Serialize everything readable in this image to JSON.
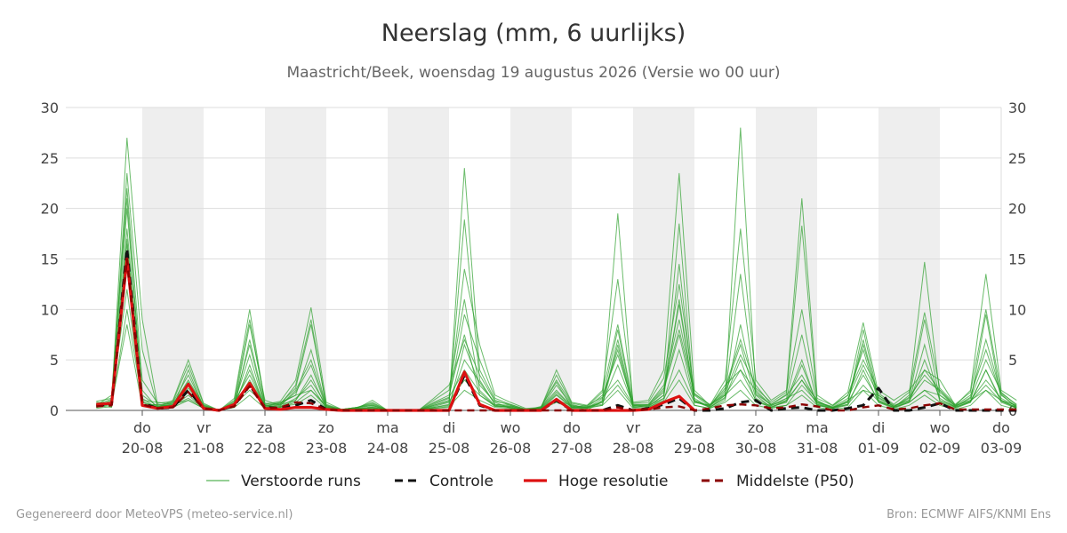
{
  "header": {
    "title": "Neerslag (mm, 6 uurlijks)",
    "subtitle": "Maastricht/Beek, woensdag 19 augustus 2026 (Versie wo 00 uur)"
  },
  "footer": {
    "left": "Gegenereerd door MeteoVPS (meteo-service.nl)",
    "right": "Bron: ECMWF AIFS/KNMI Ens"
  },
  "colors": {
    "ensemble": "#2ca02c",
    "control": "#111111",
    "high_res": "#dd1111",
    "median": "#8b0000",
    "weekend_shade": "#eeeeee",
    "grid": "#dddddd"
  },
  "chart_data": {
    "type": "line",
    "title": "Neerslag (mm, 6 uurlijks)",
    "subtitle": "Maastricht/Beek, woensdag 19 augustus 2026 (Versie wo 00 uur)",
    "ylabel": "",
    "xlabel": "",
    "ylim": [
      0,
      30
    ],
    "yticks": [
      0,
      5,
      10,
      15,
      20,
      25,
      30
    ],
    "grid": true,
    "legend_position": "bottom",
    "x_start": "2026-08-19 06:00",
    "x_step_hours": 6,
    "x_ticks": [
      {
        "day": "do",
        "date": "20-08"
      },
      {
        "day": "vr",
        "date": "21-08"
      },
      {
        "day": "za",
        "date": "22-08"
      },
      {
        "day": "zo",
        "date": "23-08"
      },
      {
        "day": "ma",
        "date": "24-08"
      },
      {
        "day": "di",
        "date": "25-08"
      },
      {
        "day": "wo",
        "date": "26-08"
      },
      {
        "day": "do",
        "date": "27-08"
      },
      {
        "day": "vr",
        "date": "28-08"
      },
      {
        "day": "za",
        "date": "29-08"
      },
      {
        "day": "zo",
        "date": "30-08"
      },
      {
        "day": "ma",
        "date": "31-08"
      },
      {
        "day": "di",
        "date": "01-09"
      },
      {
        "day": "wo",
        "date": "02-09"
      },
      {
        "day": "do",
        "date": "03-09"
      }
    ],
    "series": [
      {
        "name": "Controle",
        "style": "dashed",
        "color": "#111111",
        "values": [
          0.5,
          0.6,
          16.0,
          0.7,
          0.2,
          0.3,
          2.0,
          0.2,
          0.0,
          0.5,
          2.5,
          0.3,
          0.2,
          0.5,
          1.0,
          0.1,
          0.0,
          0.0,
          0.0,
          0.0,
          0.0,
          0.0,
          0.0,
          0.0,
          3.5,
          0.5,
          0.0,
          0.0,
          0.0,
          0.0,
          1.0,
          0.0,
          0.0,
          0.0,
          0.5,
          0.0,
          0.2,
          0.6,
          1.2,
          0.0,
          0.0,
          0.2,
          0.8,
          1.0,
          0.0,
          0.2,
          0.3,
          0.0,
          0.0,
          0.2,
          0.5,
          2.2,
          0.0,
          0.0,
          0.3,
          0.7,
          0.0,
          0.0,
          0.0,
          0.0,
          0.0
        ]
      },
      {
        "name": "Hoge resolutie",
        "style": "solid",
        "color": "#dd1111",
        "values": [
          0.6,
          0.7,
          15.0,
          0.5,
          0.2,
          0.4,
          2.6,
          0.2,
          0.0,
          0.6,
          2.7,
          0.2,
          0.1,
          0.3,
          0.3,
          0.1,
          0.0,
          0.0,
          0.0,
          0.0,
          0.0,
          0.0,
          0.0,
          0.0,
          3.8,
          0.6,
          0.0,
          0.0,
          0.0,
          0.0,
          1.1,
          0.0,
          0.0,
          0.0,
          0.0,
          0.0,
          0.1,
          0.8,
          1.4,
          0.0
        ]
      },
      {
        "name": "Middelste (P50)",
        "style": "dashed",
        "color": "#8b0000",
        "values": [
          0.4,
          0.5,
          15.0,
          0.6,
          0.2,
          0.3,
          1.8,
          0.2,
          0.0,
          0.4,
          2.4,
          0.2,
          0.3,
          0.8,
          0.7,
          0.1,
          0.0,
          0.0,
          0.0,
          0.0,
          0.0,
          0.0,
          0.0,
          0.0,
          0.0,
          0.0,
          0.0,
          0.0,
          0.0,
          0.0,
          0.0,
          0.0,
          0.0,
          0.0,
          0.3,
          0.0,
          0.1,
          0.3,
          0.4,
          0.0,
          0.2,
          0.5,
          0.6,
          0.5,
          0.2,
          0.3,
          0.6,
          0.4,
          0.0,
          0.0,
          0.3,
          0.5,
          0.1,
          0.2,
          0.5,
          0.7,
          0.1,
          0.1,
          0.1,
          0.1,
          0.1
        ]
      }
    ],
    "ensemble": {
      "name": "Verstoorde runs",
      "color": "#2ca02c",
      "members": [
        [
          0.3,
          0.9,
          27.0,
          9.0,
          0.5,
          0.8,
          3.5,
          0.4,
          0.0,
          0.8,
          6.5,
          0.4,
          0.7,
          1.5,
          2.0,
          0.5,
          0.0,
          0.2,
          0.5,
          0.0,
          0.0,
          0.0,
          0.3,
          0.5,
          24.0,
          4.0,
          1.0,
          0.5,
          0.0,
          0.2,
          2.5,
          0.5,
          0.0,
          1.0,
          8.0,
          0.5,
          0.5,
          2.0,
          7.5,
          1.0,
          0.3,
          1.5,
          4.0,
          2.0,
          0.5,
          1.0,
          3.0,
          1.0,
          0.2,
          1.0,
          2.0,
          1.5,
          0.5,
          1.0,
          3.0,
          2.0,
          0.5,
          1.0,
          2.0,
          1.0,
          0.5
        ],
        [
          0.8,
          0.7,
          23.5,
          6.0,
          0.3,
          1.0,
          5.0,
          0.7,
          0.0,
          1.2,
          10.0,
          0.6,
          0.9,
          3.0,
          10.2,
          0.8,
          0.1,
          0.3,
          0.8,
          0.0,
          0.0,
          0.0,
          0.5,
          1.0,
          14.0,
          6.5,
          1.5,
          0.8,
          0.2,
          0.3,
          4.0,
          0.8,
          0.5,
          2.0,
          13.0,
          0.8,
          1.0,
          4.0,
          23.5,
          2.0,
          0.5,
          3.0,
          18.0,
          3.0,
          1.0,
          2.0,
          21.0,
          1.5,
          0.5,
          1.5,
          5.0,
          2.0,
          1.0,
          2.0,
          4.0,
          3.0,
          0.5,
          2.0,
          13.5,
          2.0,
          1.0
        ],
        [
          0.5,
          1.5,
          21.0,
          1.0,
          0.8,
          0.6,
          1.0,
          0.2,
          0.0,
          0.5,
          8.5,
          1.0,
          0.5,
          2.0,
          5.0,
          0.4,
          0.0,
          0.1,
          0.3,
          0.0,
          0.0,
          0.0,
          1.0,
          2.0,
          11.0,
          2.0,
          0.5,
          0.3,
          0.0,
          0.1,
          1.5,
          0.3,
          0.3,
          0.5,
          6.5,
          0.3,
          0.4,
          1.5,
          18.5,
          0.5,
          0.2,
          1.0,
          8.5,
          1.5,
          0.3,
          0.5,
          2.5,
          0.8,
          0.3,
          0.8,
          3.5,
          1.0,
          0.3,
          0.8,
          2.0,
          1.5,
          0.3,
          0.8,
          9.5,
          1.0,
          0.3
        ],
        [
          0.2,
          0.4,
          20.0,
          2.0,
          0.2,
          0.3,
          4.0,
          0.3,
          0.0,
          0.6,
          4.0,
          0.3,
          0.6,
          2.5,
          9.0,
          0.3,
          0.0,
          0.2,
          1.0,
          0.0,
          0.0,
          0.0,
          0.2,
          0.3,
          6.5,
          2.5,
          0.8,
          0.2,
          0.0,
          0.2,
          1.8,
          0.4,
          0.2,
          0.8,
          4.5,
          0.5,
          0.3,
          1.2,
          14.5,
          0.8,
          0.5,
          2.0,
          6.5,
          1.2,
          0.4,
          0.8,
          4.5,
          0.6,
          0.2,
          0.6,
          8.0,
          1.2,
          0.4,
          1.2,
          9.0,
          1.0,
          0.4,
          1.0,
          3.0,
          1.2,
          0.4
        ],
        [
          0.6,
          0.5,
          18.0,
          1.5,
          0.4,
          0.5,
          3.0,
          0.5,
          0.0,
          0.3,
          7.0,
          0.5,
          0.3,
          1.0,
          3.5,
          0.2,
          0.0,
          0.1,
          0.4,
          0.0,
          0.0,
          0.0,
          0.8,
          1.5,
          7.5,
          1.5,
          0.4,
          0.3,
          0.0,
          0.4,
          2.8,
          0.3,
          0.4,
          0.6,
          7.0,
          0.4,
          0.6,
          2.5,
          9.0,
          1.5,
          0.4,
          1.8,
          5.5,
          2.5,
          0.6,
          1.5,
          3.5,
          0.8,
          0.4,
          1.5,
          6.0,
          0.8,
          0.3,
          1.5,
          14.7,
          1.5,
          0.5,
          1.5,
          6.0,
          1.5,
          0.4
        ],
        [
          0.4,
          1.0,
          17.0,
          0.8,
          0.3,
          0.6,
          2.2,
          0.3,
          0.0,
          0.7,
          5.5,
          0.3,
          0.5,
          1.8,
          4.5,
          0.3,
          0.1,
          0.2,
          0.2,
          0.0,
          0.0,
          0.0,
          0.4,
          0.8,
          18.9,
          3.0,
          0.6,
          0.4,
          0.1,
          0.2,
          1.2,
          0.2,
          0.3,
          1.5,
          5.5,
          0.6,
          0.5,
          1.8,
          10.5,
          1.2,
          0.3,
          1.2,
          28.0,
          1.8,
          0.5,
          1.2,
          7.5,
          0.7,
          0.3,
          1.2,
          4.5,
          1.5,
          0.4,
          1.0,
          4.0,
          2.0,
          0.4,
          1.2,
          5.0,
          1.8,
          0.5
        ],
        [
          0.7,
          0.8,
          16.5,
          0.5,
          0.6,
          0.4,
          1.5,
          0.2,
          0.0,
          0.4,
          4.5,
          0.2,
          0.4,
          1.2,
          2.5,
          0.2,
          0.0,
          0.1,
          0.3,
          0.0,
          0.0,
          0.0,
          0.6,
          1.2,
          9.5,
          5.0,
          1.2,
          0.6,
          0.1,
          0.3,
          3.0,
          0.6,
          0.2,
          1.2,
          6.0,
          0.3,
          0.4,
          1.5,
          11.0,
          1.0,
          0.4,
          2.5,
          4.0,
          1.0,
          0.3,
          1.0,
          5.0,
          0.5,
          0.2,
          0.8,
          7.0,
          1.0,
          0.3,
          0.8,
          5.0,
          1.2,
          0.3,
          0.9,
          4.0,
          1.0,
          0.2
        ],
        [
          0.3,
          0.6,
          14.0,
          1.2,
          0.2,
          0.7,
          2.8,
          0.4,
          0.0,
          0.9,
          3.5,
          0.4,
          0.8,
          1.5,
          6.0,
          0.4,
          0.1,
          0.3,
          0.6,
          0.0,
          0.0,
          0.0,
          0.3,
          0.6,
          5.0,
          2.8,
          0.6,
          0.5,
          0.0,
          0.1,
          1.0,
          0.5,
          0.3,
          0.9,
          19.5,
          0.6,
          0.6,
          2.2,
          8.0,
          1.6,
          0.6,
          1.6,
          13.5,
          1.6,
          0.6,
          1.6,
          18.3,
          0.9,
          0.3,
          0.9,
          6.5,
          1.3,
          0.4,
          1.3,
          3.5,
          1.8,
          0.4,
          1.3,
          7.0,
          1.6,
          0.3
        ],
        [
          0.9,
          1.2,
          12.0,
          0.6,
          0.5,
          0.5,
          1.2,
          0.3,
          0.0,
          0.5,
          3.0,
          0.5,
          0.3,
          0.8,
          2.0,
          0.3,
          0.0,
          0.2,
          0.3,
          0.0,
          0.0,
          0.0,
          0.7,
          1.3,
          4.0,
          1.8,
          0.4,
          0.4,
          0.1,
          0.2,
          1.6,
          0.3,
          0.5,
          1.3,
          3.0,
          0.5,
          0.3,
          1.0,
          6.0,
          0.9,
          0.3,
          1.3,
          5.0,
          0.9,
          0.3,
          0.9,
          3.0,
          0.6,
          0.3,
          0.6,
          2.5,
          0.9,
          0.3,
          0.9,
          6.5,
          0.9,
          0.3,
          0.9,
          2.5,
          0.9,
          0.3
        ],
        [
          0.5,
          0.3,
          10.0,
          0.9,
          0.3,
          0.8,
          1.8,
          0.5,
          0.0,
          0.6,
          2.0,
          0.6,
          0.6,
          1.0,
          3.0,
          0.5,
          0.1,
          0.3,
          0.5,
          0.0,
          0.0,
          0.0,
          0.5,
          0.9,
          3.0,
          1.5,
          0.5,
          0.3,
          0.0,
          0.3,
          2.0,
          0.4,
          0.3,
          0.8,
          2.5,
          0.4,
          0.5,
          1.2,
          4.0,
          0.8,
          0.5,
          1.5,
          3.0,
          0.8,
          0.5,
          1.2,
          2.0,
          0.5,
          0.2,
          0.5,
          4.0,
          0.8,
          0.2,
          0.8,
          2.0,
          0.8,
          0.2,
          0.8,
          4.0,
          0.8,
          0.2
        ],
        [
          0.4,
          0.7,
          8.5,
          0.4,
          0.4,
          0.3,
          1.0,
          0.2,
          0.0,
          0.3,
          1.5,
          0.2,
          0.4,
          0.6,
          1.5,
          0.2,
          0.0,
          0.1,
          0.2,
          0.0,
          0.0,
          0.0,
          0.2,
          0.4,
          2.0,
          1.0,
          0.3,
          0.2,
          0.0,
          0.1,
          0.8,
          0.2,
          0.2,
          0.5,
          2.0,
          0.2,
          0.2,
          0.8,
          3.0,
          0.5,
          0.2,
          0.8,
          2.0,
          0.5,
          0.2,
          0.5,
          1.5,
          0.3,
          0.1,
          0.3,
          2.0,
          0.5,
          0.1,
          0.5,
          1.5,
          0.5,
          0.1,
          0.5,
          2.0,
          0.5,
          0.1
        ],
        [
          0.6,
          1.1,
          22.0,
          3.0,
          0.7,
          0.9,
          4.5,
          0.6,
          0.0,
          1.0,
          9.0,
          0.7,
          0.7,
          2.2,
          8.5,
          0.6,
          0.1,
          0.3,
          0.7,
          0.0,
          0.0,
          0.0,
          1.2,
          2.5,
          7.0,
          3.5,
          0.9,
          0.6,
          0.1,
          0.3,
          3.5,
          0.7,
          0.4,
          1.8,
          8.5,
          0.7,
          0.8,
          3.2,
          12.5,
          1.7,
          0.5,
          2.2,
          7.0,
          2.2,
          0.8,
          1.8,
          10.0,
          1.2,
          0.5,
          1.8,
          8.7,
          1.7,
          0.6,
          1.8,
          9.7,
          2.2,
          0.6,
          1.8,
          10.0,
          1.7,
          0.6
        ]
      ]
    },
    "legend": [
      {
        "label": "Verstoorde runs",
        "style": "thin",
        "color": "#2ca02c"
      },
      {
        "label": "Controle",
        "style": "dashed",
        "color": "#111111"
      },
      {
        "label": "Hoge resolutie",
        "style": "solid",
        "color": "#dd1111"
      },
      {
        "label": "Middelste (P50)",
        "style": "dashed",
        "color": "#8b0000"
      }
    ]
  }
}
